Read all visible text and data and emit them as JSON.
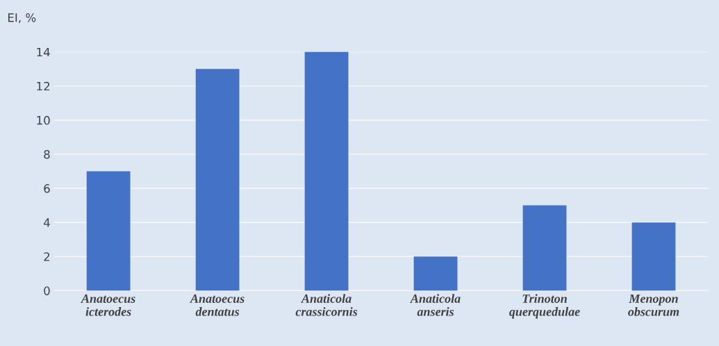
{
  "chart_data": {
    "type": "bar",
    "ylabel": "EI, %",
    "categories": [
      "Anatoecus\nicterodes",
      "Anatoecus\ndentatus",
      "Anaticola\ncrassicornis",
      "Anaticola\nanseris",
      "Trinoton\nquerquedulae",
      "Menopon\nobscurum"
    ],
    "values": [
      7,
      13,
      14,
      2,
      5,
      4
    ],
    "color": "#4472c4",
    "ylim": [
      0,
      14
    ],
    "yticks": [
      0,
      2,
      4,
      6,
      8,
      10,
      12,
      14
    ],
    "grid": "y"
  }
}
